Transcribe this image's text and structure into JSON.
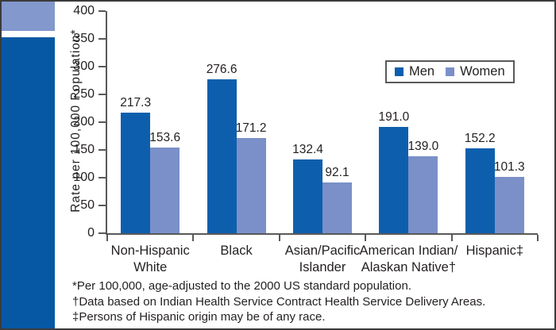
{
  "frame": {
    "border_color": "#3b3b3b",
    "background": "#ffffff"
  },
  "sidebar": {
    "top_band_color": "#8398cc",
    "main_color": "#0758a4"
  },
  "axis": {
    "line_color": "#595959",
    "text_color": "#231f20"
  },
  "footnotes": [
    "*Per 100,000, age-adjusted to the 2000 US standard population.",
    "†Data based on Indian Health Service Contract Health Service Delivery Areas.",
    "‡Persons of Hispanic origin may be of any race."
  ],
  "chart_data": {
    "type": "bar",
    "title": "",
    "xlabel": "",
    "ylabel": "Rate per 100,000 Population*",
    "ylim": [
      0,
      400
    ],
    "yticks": [
      0,
      50,
      100,
      150,
      200,
      250,
      300,
      350,
      400
    ],
    "grid": false,
    "legend_position": "top-right",
    "categories": [
      "Non-Hispanic\nWhite",
      "Black",
      "Asian/Pacific\nIslander",
      "American Indian/\nAlaskan Native†",
      "Hispanic‡"
    ],
    "series": [
      {
        "name": "Men",
        "color": "#0d5fad",
        "values": [
          217.3,
          276.6,
          132.4,
          191.0,
          152.2
        ]
      },
      {
        "name": "Women",
        "color": "#7b90c8",
        "values": [
          153.6,
          171.2,
          92.1,
          139.0,
          101.3
        ]
      }
    ],
    "value_labels": true
  }
}
